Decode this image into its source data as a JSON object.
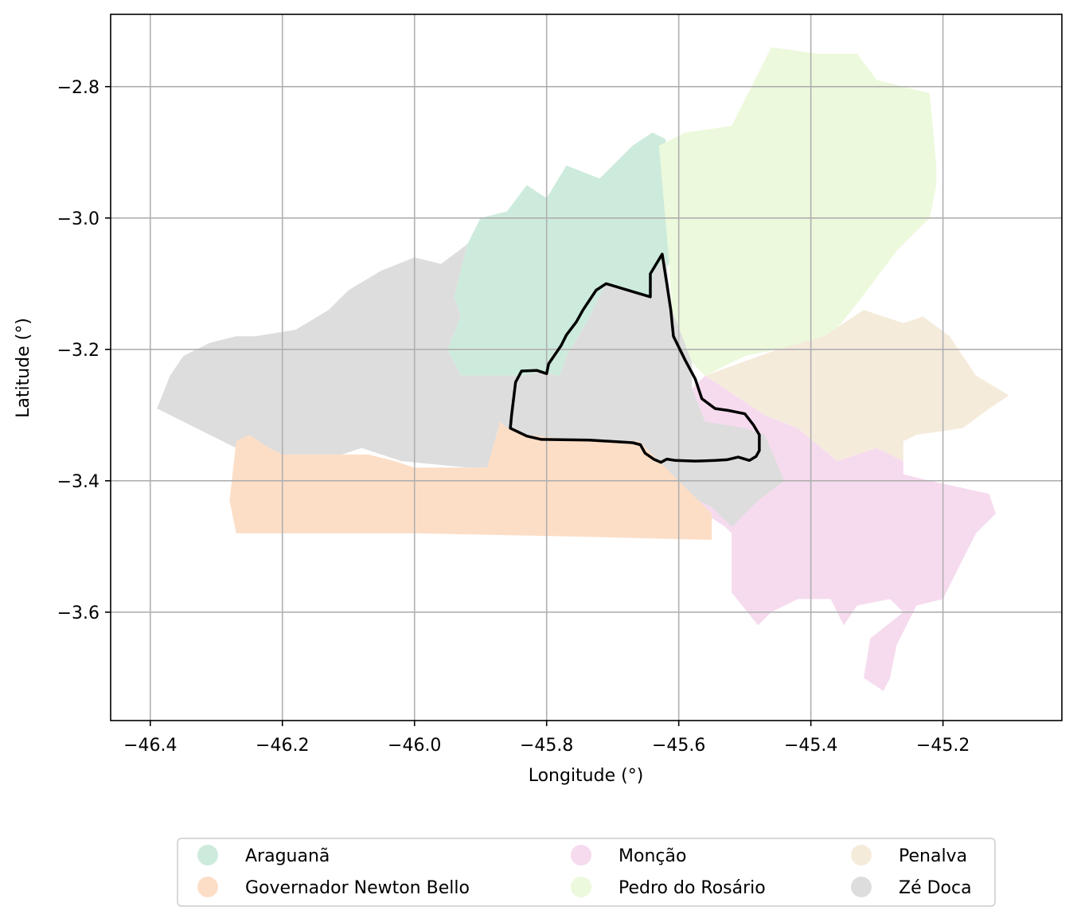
{
  "map": {
    "xlabel": "Longitude (°)",
    "ylabel": "Latitude (°)",
    "xlim": [
      -46.46,
      -45.02
    ],
    "ylim": [
      -3.765,
      -2.69
    ],
    "grid": true,
    "x_ticks": [
      {
        "value": -46.4,
        "label": "−46.4"
      },
      {
        "value": -46.2,
        "label": "−46.2"
      },
      {
        "value": -46.0,
        "label": "−46.0"
      },
      {
        "value": -45.8,
        "label": "−45.8"
      },
      {
        "value": -45.6,
        "label": "−45.6"
      },
      {
        "value": -45.4,
        "label": "−45.4"
      },
      {
        "value": -45.2,
        "label": "−45.2"
      }
    ],
    "y_ticks": [
      {
        "value": -2.8,
        "label": "−2.8"
      },
      {
        "value": -3.0,
        "label": "−3.0"
      },
      {
        "value": -3.2,
        "label": "−3.2"
      },
      {
        "value": -3.4,
        "label": "−3.4"
      },
      {
        "value": -3.6,
        "label": "−3.6"
      }
    ],
    "legend_placement": "bottom-center",
    "regions": [
      {
        "name": "Araguanã",
        "color": "#cdebdc",
        "coords": [
          [
            -45.93,
            -3.24
          ],
          [
            -45.95,
            -3.2
          ],
          [
            -45.93,
            -3.15
          ],
          [
            -45.94,
            -3.12
          ],
          [
            -45.92,
            -3.04
          ],
          [
            -45.9,
            -3.0
          ],
          [
            -45.86,
            -2.99
          ],
          [
            -45.83,
            -2.95
          ],
          [
            -45.8,
            -2.97
          ],
          [
            -45.77,
            -2.92
          ],
          [
            -45.72,
            -2.94
          ],
          [
            -45.67,
            -2.89
          ],
          [
            -45.64,
            -2.87
          ],
          [
            -45.62,
            -2.88
          ],
          [
            -45.61,
            -3.06
          ],
          [
            -45.62,
            -3.08
          ],
          [
            -45.64,
            -3.085
          ],
          [
            -45.64,
            -3.12
          ],
          [
            -45.71,
            -3.1
          ],
          [
            -45.74,
            -3.16
          ],
          [
            -45.77,
            -3.21
          ],
          [
            -45.78,
            -3.24
          ],
          [
            -45.81,
            -3.235
          ],
          [
            -45.84,
            -3.24
          ]
        ]
      },
      {
        "name": "Pedro do Rosário",
        "color": "#ecf9dc",
        "coords": [
          [
            -45.63,
            -2.89
          ],
          [
            -45.59,
            -2.87
          ],
          [
            -45.52,
            -2.86
          ],
          [
            -45.49,
            -2.8
          ],
          [
            -45.46,
            -2.74
          ],
          [
            -45.39,
            -2.75
          ],
          [
            -45.33,
            -2.75
          ],
          [
            -45.3,
            -2.79
          ],
          [
            -45.22,
            -2.81
          ],
          [
            -45.21,
            -2.92
          ],
          [
            -45.21,
            -2.95
          ],
          [
            -45.22,
            -3.0
          ],
          [
            -45.27,
            -3.05
          ],
          [
            -45.33,
            -3.13
          ],
          [
            -45.37,
            -3.18
          ],
          [
            -45.45,
            -3.2
          ],
          [
            -45.5,
            -3.21
          ],
          [
            -45.56,
            -3.24
          ],
          [
            -45.58,
            -3.22
          ],
          [
            -45.61,
            -3.14
          ],
          [
            -45.615,
            -3.06
          ]
        ]
      },
      {
        "name": "Penalva",
        "color": "#f5ebdb",
        "coords": [
          [
            -45.56,
            -3.24
          ],
          [
            -45.45,
            -3.2
          ],
          [
            -45.38,
            -3.18
          ],
          [
            -45.32,
            -3.14
          ],
          [
            -45.26,
            -3.16
          ],
          [
            -45.23,
            -3.15
          ],
          [
            -45.19,
            -3.18
          ],
          [
            -45.15,
            -3.24
          ],
          [
            -45.1,
            -3.27
          ],
          [
            -45.13,
            -3.29
          ],
          [
            -45.17,
            -3.32
          ],
          [
            -45.24,
            -3.33
          ],
          [
            -45.26,
            -3.34
          ],
          [
            -45.26,
            -3.37
          ],
          [
            -45.3,
            -3.35
          ],
          [
            -45.36,
            -3.37
          ],
          [
            -45.42,
            -3.32
          ],
          [
            -45.47,
            -3.3
          ]
        ]
      },
      {
        "name": "Monção",
        "color": "#f6dbee",
        "coords": [
          [
            -45.56,
            -3.24
          ],
          [
            -45.47,
            -3.3
          ],
          [
            -45.42,
            -3.32
          ],
          [
            -45.36,
            -3.37
          ],
          [
            -45.3,
            -3.35
          ],
          [
            -45.26,
            -3.37
          ],
          [
            -45.26,
            -3.39
          ],
          [
            -45.22,
            -3.4
          ],
          [
            -45.13,
            -3.42
          ],
          [
            -45.12,
            -3.45
          ],
          [
            -45.15,
            -3.48
          ],
          [
            -45.17,
            -3.52
          ],
          [
            -45.2,
            -3.58
          ],
          [
            -45.24,
            -3.59
          ],
          [
            -45.27,
            -3.65
          ],
          [
            -45.28,
            -3.7
          ],
          [
            -45.29,
            -3.72
          ],
          [
            -45.32,
            -3.7
          ],
          [
            -45.31,
            -3.64
          ],
          [
            -45.26,
            -3.6
          ],
          [
            -45.28,
            -3.58
          ],
          [
            -45.33,
            -3.59
          ],
          [
            -45.35,
            -3.62
          ],
          [
            -45.37,
            -3.58
          ],
          [
            -45.42,
            -3.58
          ],
          [
            -45.46,
            -3.6
          ],
          [
            -45.48,
            -3.62
          ],
          [
            -45.52,
            -3.57
          ],
          [
            -45.52,
            -3.48
          ],
          [
            -45.53,
            -3.47
          ],
          [
            -45.56,
            -3.45
          ],
          [
            -45.6,
            -3.42
          ],
          [
            -45.61,
            -3.37
          ],
          [
            -45.56,
            -3.31
          ],
          [
            -45.58,
            -3.26
          ]
        ]
      },
      {
        "name": "Zé Doca",
        "color": "#dddddd",
        "coords": [
          [
            -46.39,
            -3.29
          ],
          [
            -46.37,
            -3.24
          ],
          [
            -46.35,
            -3.21
          ],
          [
            -46.31,
            -3.19
          ],
          [
            -46.27,
            -3.18
          ],
          [
            -46.24,
            -3.18
          ],
          [
            -46.18,
            -3.17
          ],
          [
            -46.13,
            -3.14
          ],
          [
            -46.1,
            -3.11
          ],
          [
            -46.05,
            -3.08
          ],
          [
            -46.0,
            -3.06
          ],
          [
            -45.96,
            -3.07
          ],
          [
            -45.92,
            -3.04
          ],
          [
            -45.94,
            -3.12
          ],
          [
            -45.93,
            -3.15
          ],
          [
            -45.95,
            -3.2
          ],
          [
            -45.93,
            -3.24
          ],
          [
            -45.84,
            -3.24
          ],
          [
            -45.81,
            -3.235
          ],
          [
            -45.78,
            -3.24
          ],
          [
            -45.77,
            -3.21
          ],
          [
            -45.74,
            -3.16
          ],
          [
            -45.71,
            -3.1
          ],
          [
            -45.64,
            -3.12
          ],
          [
            -45.64,
            -3.085
          ],
          [
            -45.62,
            -3.06
          ],
          [
            -45.61,
            -3.14
          ],
          [
            -45.58,
            -3.22
          ],
          [
            -45.58,
            -3.26
          ],
          [
            -45.56,
            -3.31
          ],
          [
            -45.5,
            -3.32
          ],
          [
            -45.47,
            -3.33
          ],
          [
            -45.44,
            -3.4
          ],
          [
            -45.48,
            -3.43
          ],
          [
            -45.52,
            -3.47
          ],
          [
            -45.55,
            -3.44
          ],
          [
            -45.59,
            -3.42
          ],
          [
            -45.62,
            -3.39
          ],
          [
            -45.63,
            -3.37
          ],
          [
            -45.66,
            -3.34
          ],
          [
            -45.74,
            -3.34
          ],
          [
            -45.83,
            -3.34
          ],
          [
            -45.86,
            -3.32
          ],
          [
            -45.87,
            -3.31
          ],
          [
            -45.89,
            -3.38
          ],
          [
            -45.92,
            -3.38
          ],
          [
            -46.02,
            -3.37
          ],
          [
            -46.08,
            -3.35
          ],
          [
            -46.14,
            -3.37
          ],
          [
            -46.2,
            -3.36
          ],
          [
            -46.27,
            -3.35
          ]
        ]
      },
      {
        "name": "Governador Newton Bello",
        "color": "#fcdec7",
        "coords": [
          [
            -46.27,
            -3.34
          ],
          [
            -46.25,
            -3.33
          ],
          [
            -46.22,
            -3.35
          ],
          [
            -46.2,
            -3.36
          ],
          [
            -46.07,
            -3.36
          ],
          [
            -46.03,
            -3.37
          ],
          [
            -46.0,
            -3.38
          ],
          [
            -45.92,
            -3.38
          ],
          [
            -45.89,
            -3.38
          ],
          [
            -45.87,
            -3.31
          ],
          [
            -45.86,
            -3.32
          ],
          [
            -45.83,
            -3.33
          ],
          [
            -45.74,
            -3.34
          ],
          [
            -45.66,
            -3.34
          ],
          [
            -45.63,
            -3.37
          ],
          [
            -45.61,
            -3.39
          ],
          [
            -45.57,
            -3.43
          ],
          [
            -45.55,
            -3.45
          ],
          [
            -45.55,
            -3.49
          ],
          [
            -45.75,
            -3.485
          ],
          [
            -46.0,
            -3.48
          ],
          [
            -46.27,
            -3.48
          ],
          [
            -46.28,
            -3.43
          ]
        ]
      }
    ],
    "highlight": {
      "color": "#000000",
      "coords": [
        [
          -45.855,
          -3.32
        ],
        [
          -45.853,
          -3.3
        ],
        [
          -45.847,
          -3.25
        ],
        [
          -45.838,
          -3.233
        ],
        [
          -45.815,
          -3.232
        ],
        [
          -45.8,
          -3.237
        ],
        [
          -45.797,
          -3.222
        ],
        [
          -45.778,
          -3.194
        ],
        [
          -45.77,
          -3.178
        ],
        [
          -45.755,
          -3.158
        ],
        [
          -45.745,
          -3.14
        ],
        [
          -45.725,
          -3.11
        ],
        [
          -45.71,
          -3.1
        ],
        [
          -45.66,
          -3.115
        ],
        [
          -45.643,
          -3.12
        ],
        [
          -45.643,
          -3.085
        ],
        [
          -45.625,
          -3.055
        ],
        [
          -45.618,
          -3.1
        ],
        [
          -45.612,
          -3.14
        ],
        [
          -45.608,
          -3.18
        ],
        [
          -45.59,
          -3.217
        ],
        [
          -45.575,
          -3.245
        ],
        [
          -45.565,
          -3.275
        ],
        [
          -45.545,
          -3.29
        ],
        [
          -45.525,
          -3.293
        ],
        [
          -45.5,
          -3.298
        ],
        [
          -45.487,
          -3.315
        ],
        [
          -45.478,
          -3.33
        ],
        [
          -45.478,
          -3.354
        ],
        [
          -45.483,
          -3.363
        ],
        [
          -45.493,
          -3.369
        ],
        [
          -45.51,
          -3.364
        ],
        [
          -45.527,
          -3.368
        ],
        [
          -45.545,
          -3.369
        ],
        [
          -45.575,
          -3.37
        ],
        [
          -45.605,
          -3.369
        ],
        [
          -45.618,
          -3.367
        ],
        [
          -45.627,
          -3.372
        ],
        [
          -45.638,
          -3.367
        ],
        [
          -45.651,
          -3.358
        ],
        [
          -45.658,
          -3.345
        ],
        [
          -45.67,
          -3.342
        ],
        [
          -45.735,
          -3.338
        ],
        [
          -45.808,
          -3.337
        ],
        [
          -45.83,
          -3.332
        ],
        [
          -45.855,
          -3.32
        ]
      ]
    }
  },
  "legend": {
    "items": [
      {
        "label": "Araguanã",
        "color": "#cdebdc"
      },
      {
        "label": "Governador Newton Bello",
        "color": "#fcdec7"
      },
      {
        "label": "Monção",
        "color": "#f6dbee"
      },
      {
        "label": "Pedro do Rosário",
        "color": "#ecf9dc"
      },
      {
        "label": "Penalva",
        "color": "#f5ebdb"
      },
      {
        "label": "Zé Doca",
        "color": "#dddddd"
      }
    ]
  }
}
